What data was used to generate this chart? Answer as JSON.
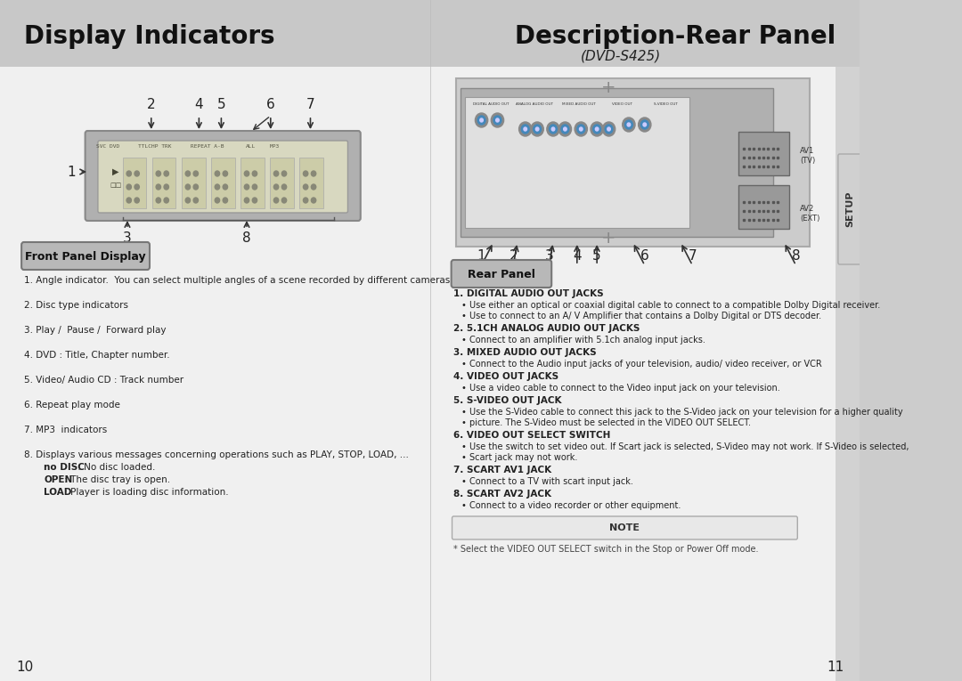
{
  "bg_color": "#d8d8d8",
  "white": "#ffffff",
  "black": "#000000",
  "gray_light": "#e8e8e8",
  "gray_mid": "#c0c0c0",
  "gray_dark": "#a0a0a0",
  "left_title": "Display Indicators",
  "right_title": "Description-Rear Panel",
  "dvd_model": "(DVD-S425)",
  "front_panel_label": "Front Panel Display",
  "rear_panel_label": "Rear Panel",
  "page_left": "10",
  "page_right": "11",
  "setup_label": "SETUP",
  "front_panel_items": [
    "1. Angle indicator.  You can select multiple angles of a scene recorded by different cameras.",
    "2. Disc type indicators",
    "3. Play /  Pause /  Forward play",
    "4. DVD : Title, Chapter number.",
    "5. Video/ Audio CD : Track number",
    "6. Repeat play mode",
    "7. MP3  indicators",
    "8. Displays various messages concerning operations such as PLAY, STOP, LOAD, ..."
  ],
  "front_panel_sub": [
    "no DISC : No disc loaded.",
    "OPEN : The disc tray is open.",
    "LOAD : Player is loading disc information."
  ],
  "rear_panel_items": [
    "1. DIGITAL AUDIO OUT JACKS",
    "2. 5.1CH ANALOG AUDIO OUT JACKS",
    "3. MIXED AUDIO OUT JACKS",
    "4. VIDEO OUT JACKS",
    "5. S-VIDEO OUT JACK",
    "6. VIDEO OUT SELECT SWITCH",
    "7. SCART AV1 JACK",
    "8. SCART AV2 JACK"
  ],
  "rear_panel_bullets": [
    [
      "Use either an optical or coaxial digital cable to connect to a compatible Dolby Digital receiver.",
      "Use to connect to an A/ V Amplifier that contains a Dolby Digital or DTS decoder."
    ],
    [
      "Connect to an amplifier with 5.1ch analog input jacks."
    ],
    [
      "Connect to the Audio input jacks of your television, audio/ video receiver, or VCR"
    ],
    [
      "Use a video cable to connect to the Video input jack on your television."
    ],
    [
      "Use the S-Video cable to connect this jack to the S-Video jack on your television for a higher quality",
      "picture. The S-Video must be selected in the VIDEO OUT SELECT."
    ],
    [
      "Use the switch to set video out. If Scart jack is selected, S-Video may not work. If S-Video is selected,",
      "Scart jack may not work."
    ],
    [
      "Connect to a TV with scart input jack."
    ],
    [
      "Connect to a video recorder or other equipment."
    ]
  ],
  "note_text": "* Select the VIDEO OUT SELECT switch in the Stop or Power Off mode."
}
